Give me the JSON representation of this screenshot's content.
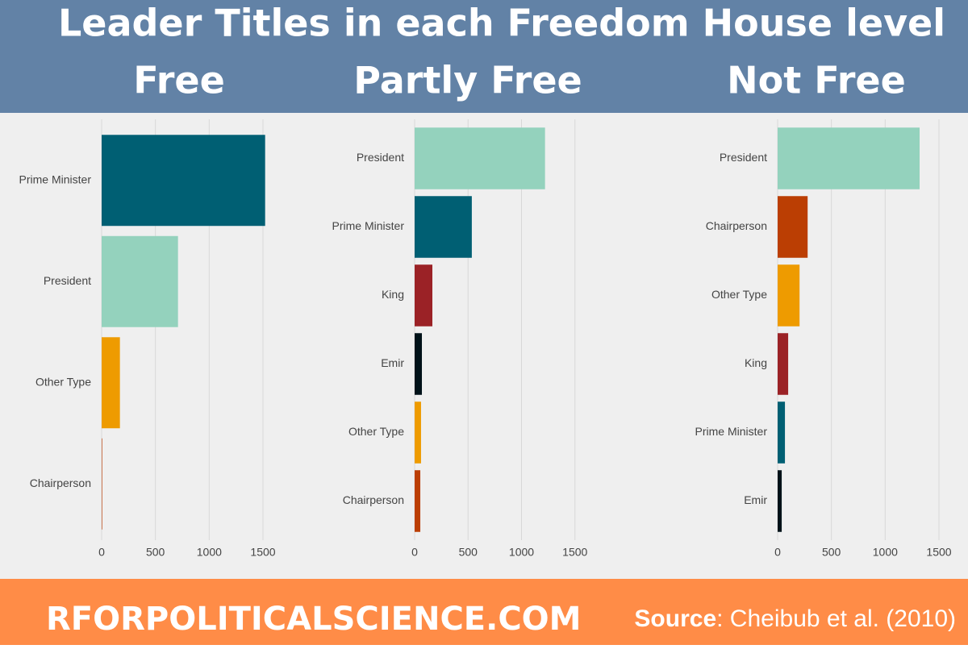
{
  "header": {
    "title": "Leader Titles in each Freedom House level"
  },
  "footer": {
    "site": "RFORPOLITICALSCIENCE.COM",
    "source_label": "Source",
    "source_text": ": Cheibub et al. (2010)"
  },
  "chart_data": [
    {
      "type": "hbar",
      "title": "Free",
      "categories": [
        "Prime Minister",
        "President",
        "Other Type",
        "Chairperson"
      ],
      "values": [
        1520,
        710,
        170,
        5
      ],
      "colors": [
        "#005f73",
        "#94d2bd",
        "#ee9b00",
        "#bb3e03"
      ],
      "xlim": [
        0,
        1590
      ],
      "xticks": [
        0,
        500,
        1000,
        1500
      ],
      "grid": true
    },
    {
      "type": "hbar",
      "title": "Partly Free",
      "categories": [
        "President",
        "Prime Minister",
        "King",
        "Emir",
        "Other Type",
        "Chairperson"
      ],
      "values": [
        1220,
        535,
        166,
        68,
        60,
        53
      ],
      "colors": [
        "#94d2bd",
        "#005f73",
        "#9b2226",
        "#001219",
        "#ee9b00",
        "#bb3e03"
      ],
      "xlim": [
        0,
        1600
      ],
      "xticks": [
        0,
        500,
        1000,
        1500
      ],
      "grid": true
    },
    {
      "type": "hbar",
      "title": "Not Free",
      "categories": [
        "President",
        "Chairperson",
        "Other Type",
        "King",
        "Prime Minister",
        "Emir"
      ],
      "values": [
        1320,
        279,
        204,
        98,
        68,
        38
      ],
      "colors": [
        "#94d2bd",
        "#bb3e03",
        "#ee9b00",
        "#9b2226",
        "#005f73",
        "#001219"
      ],
      "xlim": [
        0,
        1590
      ],
      "xticks": [
        0,
        500,
        1000,
        1500
      ],
      "grid": true
    }
  ]
}
